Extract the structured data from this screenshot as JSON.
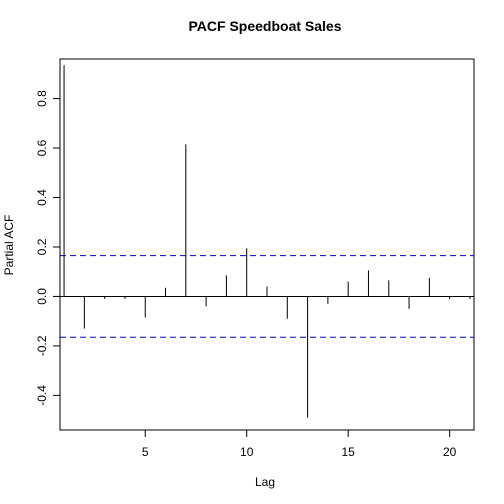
{
  "chart_data": {
    "type": "bar",
    "title": "PACF Speedboat Sales",
    "xlabel": "Lag",
    "ylabel": "Partial ACF",
    "x": [
      1,
      2,
      3,
      4,
      5,
      6,
      7,
      8,
      9,
      10,
      11,
      12,
      13,
      14,
      15,
      16,
      17,
      18,
      19,
      20,
      21
    ],
    "values": [
      0.935,
      -0.13,
      -0.01,
      -0.01,
      -0.085,
      0.035,
      0.615,
      -0.04,
      0.085,
      0.195,
      0.04,
      -0.09,
      -0.49,
      -0.03,
      0.06,
      0.105,
      0.065,
      -0.05,
      0.075,
      -0.01,
      -0.01
    ],
    "xlim": [
      0.8,
      21.2
    ],
    "ylim": [
      -0.54,
      0.96
    ],
    "xticks": [
      5,
      10,
      15,
      20
    ],
    "yticks": [
      -0.4,
      -0.2,
      0.0,
      0.2,
      0.4,
      0.6,
      0.8
    ],
    "ytick_labels": [
      "-0.4",
      "-0.2",
      "0.0",
      "0.2",
      "0.4",
      "0.6",
      "0.8"
    ],
    "confidence_bound": 0.165,
    "colors": {
      "bars": "#000000",
      "confidence": "#0000cc",
      "zero_line": "#000000"
    },
    "grid": false
  }
}
